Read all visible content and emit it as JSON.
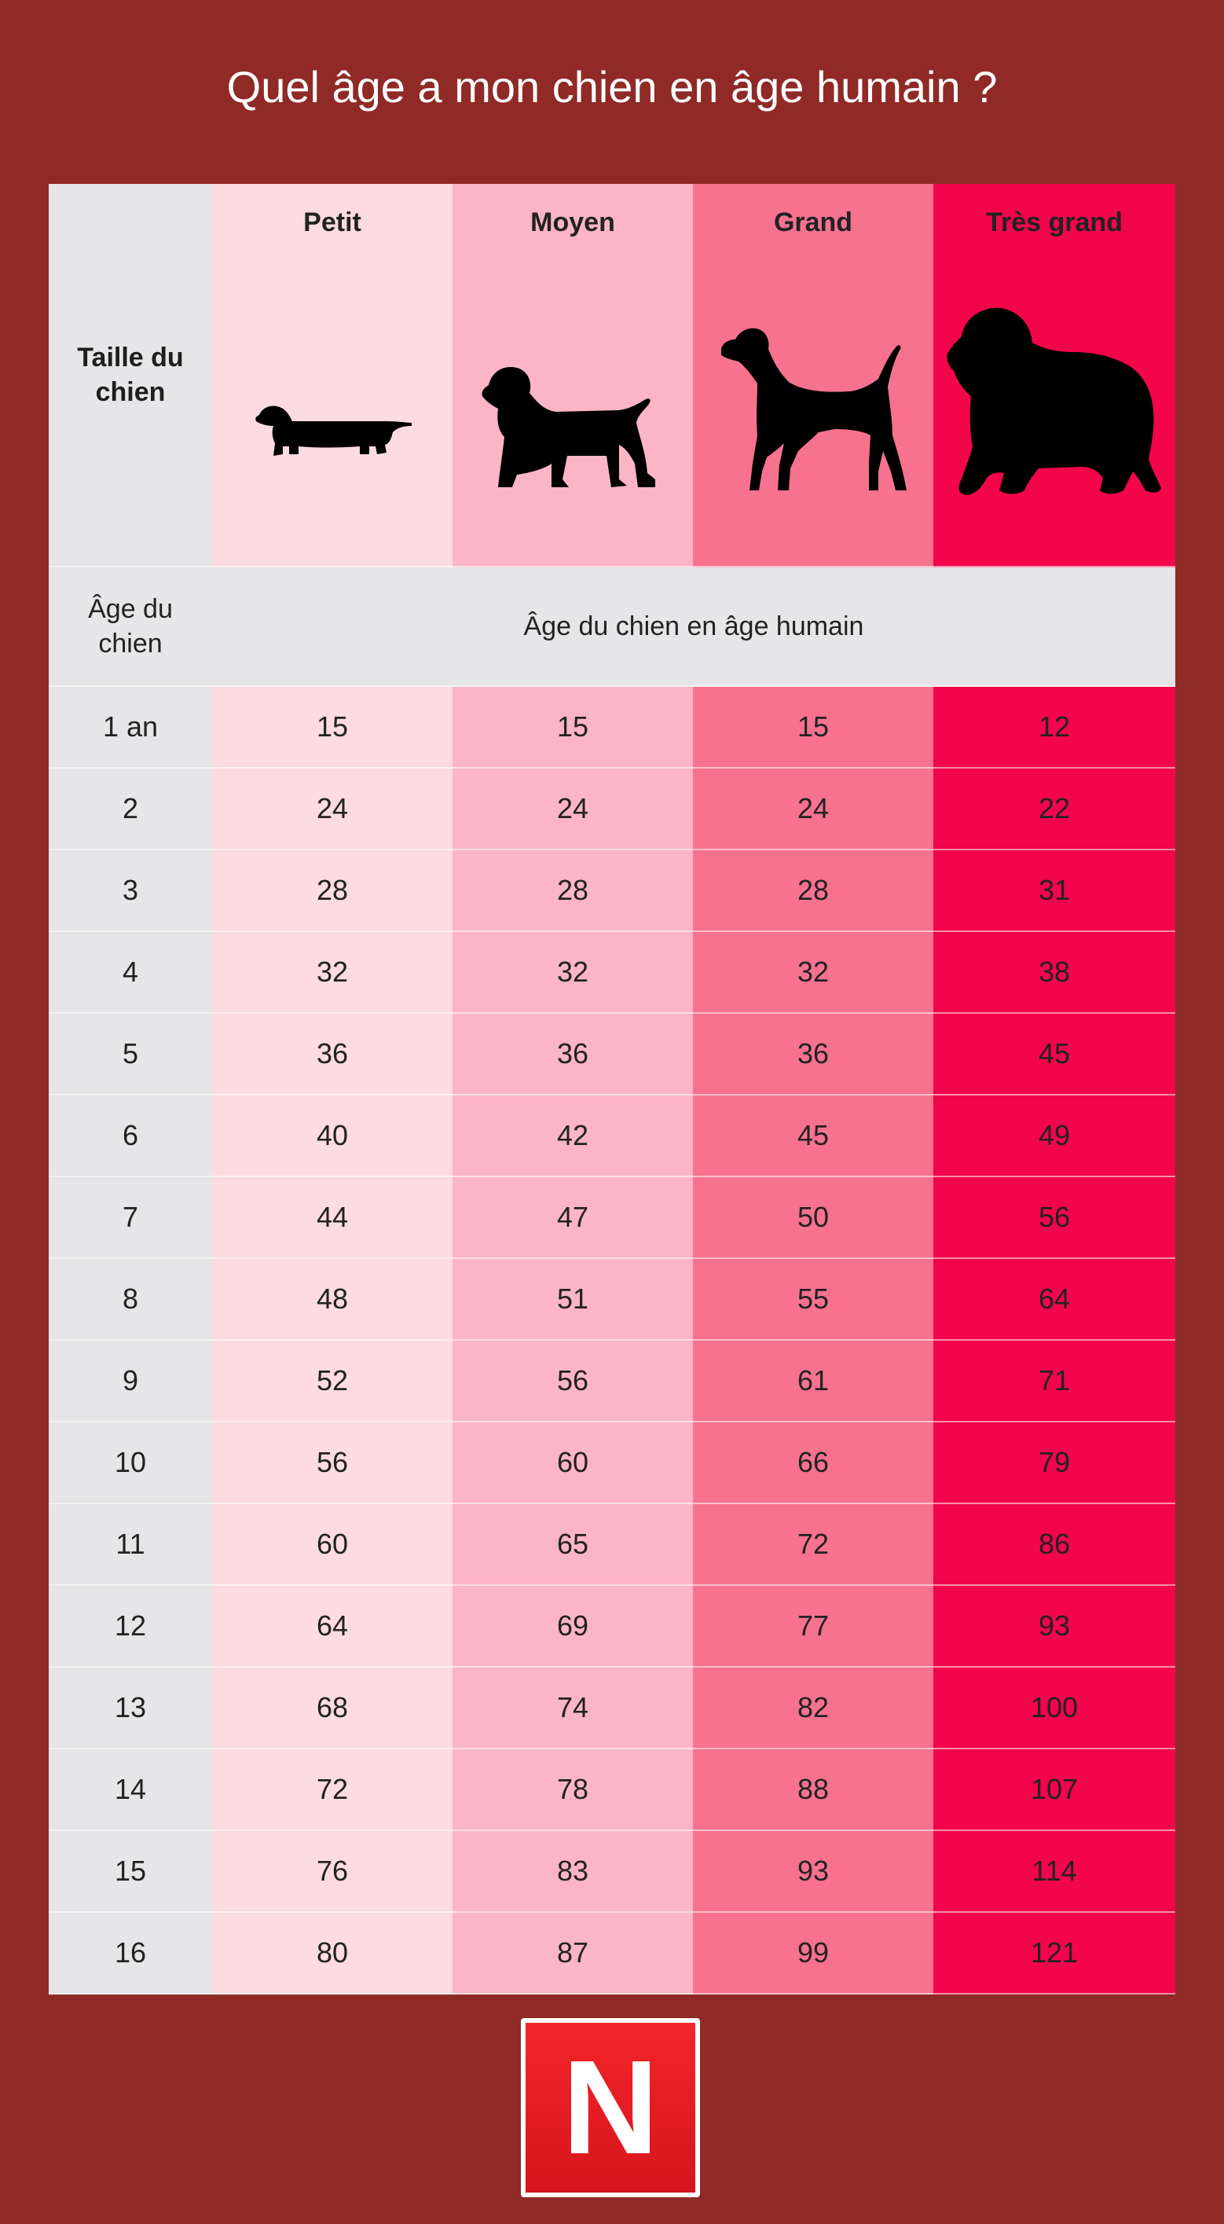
{
  "title": "Quel âge a mon chien en âge humain ?",
  "header": {
    "row_label": "Taille du chien",
    "sizes": [
      "Petit",
      "Moyen",
      "Grand",
      "Très grand"
    ]
  },
  "subheader": {
    "row_label": "Âge du chien",
    "span_label": "Âge du chien en âge humain"
  },
  "colors": {
    "background": "#8f2a26",
    "label_column": "#e6e5e7",
    "petit": "#fcdbe2",
    "moyen": "#fbb5c6",
    "grand": "#f7728f",
    "tres_grand": "#f2054a"
  },
  "icons": [
    "dachshund-silhouette-icon",
    "spaniel-silhouette-icon",
    "pointer-silhouette-icon",
    "newfoundland-silhouette-icon"
  ],
  "logo": {
    "letter": "N"
  },
  "chart_data": {
    "type": "table",
    "title": "Quel âge a mon chien en âge humain ?",
    "columns": [
      "Âge du chien",
      "Petit",
      "Moyen",
      "Grand",
      "Très grand"
    ],
    "rows": [
      [
        "1 an",
        "15",
        "15",
        "15",
        "12"
      ],
      [
        "2",
        "24",
        "24",
        "24",
        "22"
      ],
      [
        "3",
        "28",
        "28",
        "28",
        "31"
      ],
      [
        "4",
        "32",
        "32",
        "32",
        "38"
      ],
      [
        "5",
        "36",
        "36",
        "36",
        "45"
      ],
      [
        "6",
        "40",
        "42",
        "45",
        "49"
      ],
      [
        "7",
        "44",
        "47",
        "50",
        "56"
      ],
      [
        "8",
        "48",
        "51",
        "55",
        "64"
      ],
      [
        "9",
        "52",
        "56",
        "61",
        "71"
      ],
      [
        "10",
        "56",
        "60",
        "66",
        "79"
      ],
      [
        "11",
        "60",
        "65",
        "72",
        "86"
      ],
      [
        "12",
        "64",
        "69",
        "77",
        "93"
      ],
      [
        "13",
        "68",
        "74",
        "82",
        "100"
      ],
      [
        "14",
        "72",
        "78",
        "88",
        "107"
      ],
      [
        "15",
        "76",
        "83",
        "93",
        "114"
      ],
      [
        "16",
        "80",
        "87",
        "99",
        "121"
      ]
    ]
  }
}
